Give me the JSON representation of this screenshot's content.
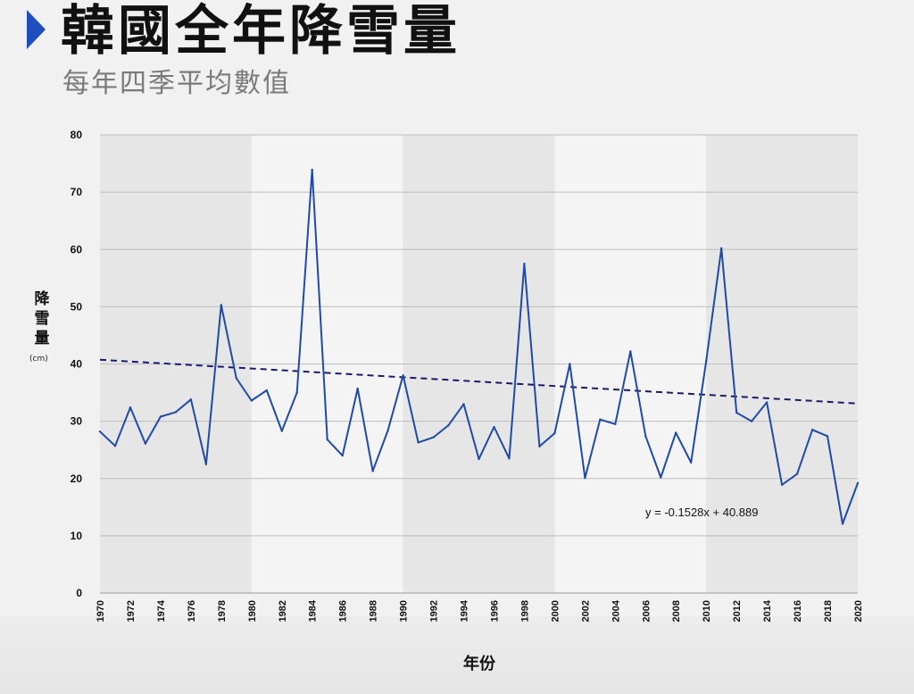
{
  "title": "韓國全年降雪量",
  "subtitle": "每年四季平均數值",
  "chart_data": {
    "type": "line",
    "title": "韓國全年降雪量",
    "subtitle": "每年四季平均數值",
    "xlabel": "年份",
    "ylabel": "降雪量",
    "yunit": "(cm)",
    "ylim": [
      0,
      80
    ],
    "yticks": [
      0,
      10,
      20,
      30,
      40,
      50,
      60,
      70,
      80
    ],
    "xlim": [
      1970,
      2020
    ],
    "xticks": [
      1970,
      1972,
      1974,
      1976,
      1978,
      1980,
      1982,
      1984,
      1986,
      1988,
      1990,
      1992,
      1994,
      1996,
      1998,
      2000,
      2002,
      2004,
      2006,
      2008,
      2010,
      2012,
      2014,
      2016,
      2018,
      2020
    ],
    "grid": true,
    "shaded_bands": [
      [
        1970,
        1980
      ],
      [
        1990,
        2000
      ],
      [
        2010,
        2020
      ]
    ],
    "x": [
      1970,
      1971,
      1972,
      1973,
      1974,
      1975,
      1976,
      1977,
      1978,
      1979,
      1980,
      1981,
      1982,
      1983,
      1984,
      1985,
      1986,
      1987,
      1988,
      1989,
      1990,
      1991,
      1992,
      1993,
      1994,
      1995,
      1996,
      1997,
      1998,
      1999,
      2000,
      2001,
      2002,
      2003,
      2004,
      2005,
      2006,
      2007,
      2008,
      2009,
      2010,
      2011,
      2012,
      2013,
      2014,
      2015,
      2016,
      2017,
      2018,
      2019,
      2020
    ],
    "series": [
      {
        "color": "#1f4aa8",
        "values": [
          28.2,
          25.7,
          32.4,
          26.1,
          30.8,
          31.6,
          33.8,
          22.5,
          50.3,
          37.5,
          33.6,
          35.4,
          28.3,
          35.0,
          73.9,
          26.8,
          24.0,
          35.7,
          21.3,
          28.4,
          38.0,
          26.3,
          27.2,
          29.3,
          33.0,
          23.4,
          29.0,
          23.5,
          57.5,
          25.6,
          27.9,
          40.0,
          20.1,
          30.3,
          29.5,
          42.2,
          27.4,
          20.2,
          28.0,
          22.8,
          40.5,
          60.2,
          31.5,
          30.0,
          33.3,
          18.9,
          20.8,
          28.5,
          27.4,
          12.1,
          19.2
        ]
      }
    ],
    "trendline": {
      "style": "dashed",
      "color": "#1a1a6e",
      "slope": -0.1528,
      "intercept": 40.889,
      "equation": "y = -0.1528x + 40.889"
    }
  }
}
